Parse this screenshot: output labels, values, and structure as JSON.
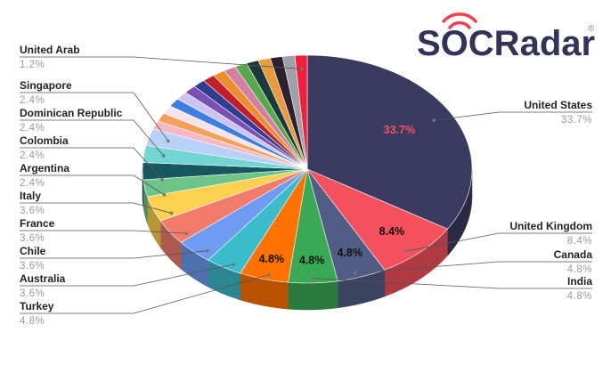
{
  "logo": "SOCRadar",
  "logo_mark": "®",
  "chart_data": {
    "type": "pie3d",
    "categories": [
      "United States",
      "United Kingdom",
      "Canada",
      "India",
      "Turkey",
      "Australia",
      "Chile",
      "France",
      "Italy",
      "Argentina",
      "Colombia",
      "Dominican Republic",
      "Singapore",
      null,
      null,
      null,
      null,
      null,
      null,
      null,
      null,
      null,
      null,
      null,
      null,
      null,
      null,
      null,
      "United Arab"
    ],
    "values": [
      33.7,
      8.4,
      4.8,
      4.8,
      4.8,
      3.6,
      3.6,
      3.6,
      3.6,
      2.4,
      2.4,
      2.4,
      2.4,
      1.2,
      1.2,
      1.2,
      1.2,
      1.2,
      1.2,
      1.2,
      1.2,
      1.2,
      1.2,
      1.2,
      1.2,
      1.2,
      1.2,
      1.2,
      1.2
    ],
    "value_labels": [
      "33.7%",
      "8.4%",
      "4.8%",
      "4.8%",
      "4.8%",
      "3.6%",
      "3.6%",
      "3.6%",
      "3.6%",
      "2.4%",
      "2.4%",
      "2.4%",
      "2.4%",
      null,
      null,
      null,
      null,
      null,
      null,
      null,
      null,
      null,
      null,
      null,
      null,
      null,
      null,
      null,
      "1.2%"
    ],
    "colors": [
      "#3b3a60",
      "#f4505e",
      "#515d86",
      "#3aa956",
      "#ff7200",
      "#3bbccb",
      "#6d9cf2",
      "#f27b6c",
      "#fbd14f",
      "#6dc489",
      "#17575f",
      "#71d6d3",
      "#b9d1f8",
      "#f6b8c2",
      "#f2a15a",
      "#f7e3ea",
      "#3d7fe1",
      "#cbc3f2",
      "#7a50b2",
      "#2e3f91",
      "#c21f2b",
      "#e98f2b",
      "#d27fa3",
      "#58a84f",
      "#1c3a39",
      "#e99a3b",
      "#2b2131",
      "#a0a0a8",
      "#f21e3c"
    ]
  }
}
